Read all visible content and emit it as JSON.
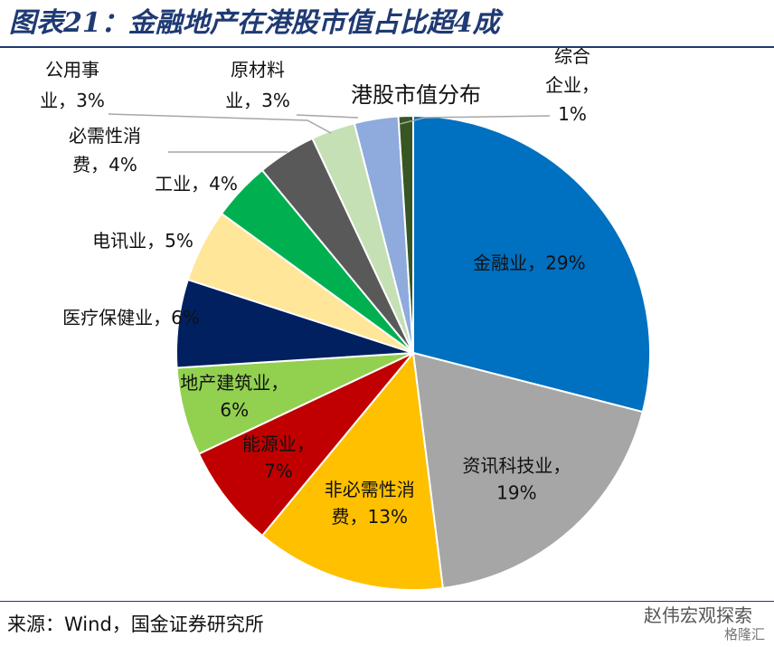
{
  "figure": {
    "title": "图表21：金融地产在港股市值占比超4成",
    "source": "来源：Wind，国金证券研究所",
    "watermark": "赵伟宏观探索",
    "watermark_sub": "格隆汇"
  },
  "chart_data": {
    "type": "pie",
    "title": "港股市值分布",
    "start_angle_deg": 0,
    "direction": "clockwise",
    "slices": [
      {
        "name": "金融业",
        "value": 29,
        "color": "#0070c0",
        "label_lines": [
          "金融业，29%"
        ],
        "label_color": "#111111"
      },
      {
        "name": "资讯科技业",
        "value": 19,
        "color": "#a6a6a6",
        "label_lines": [
          "资讯科技业，",
          "19%"
        ],
        "label_color": "#111111"
      },
      {
        "name": "非必需性消费",
        "value": 13,
        "color": "#ffc000",
        "label_lines": [
          "非必需性消",
          "费，13%"
        ],
        "label_color": "#111111"
      },
      {
        "name": "能源业",
        "value": 7,
        "color": "#c00000",
        "label_lines": [
          "能源业，",
          "7%"
        ],
        "label_color": "#111111"
      },
      {
        "name": "地产建筑业",
        "value": 6,
        "color": "#92d050",
        "label_lines": [
          "地产建筑业，",
          "6%"
        ],
        "label_color": "#111111"
      },
      {
        "name": "医疗保健业",
        "value": 6,
        "color": "#002060",
        "label_lines": [
          "医疗保健业，6%"
        ],
        "label_color": "#111111"
      },
      {
        "name": "电讯业",
        "value": 5,
        "color": "#ffe699",
        "label_lines": [
          "电讯业，5%"
        ],
        "label_color": "#111111"
      },
      {
        "name": "工业",
        "value": 4,
        "color": "#00b050",
        "label_lines": [
          "工业，4%"
        ],
        "label_color": "#111111"
      },
      {
        "name": "必需性消费",
        "value": 4,
        "color": "#595959",
        "label_lines": [
          "必需性消",
          "费，4%"
        ],
        "label_color": "#111111"
      },
      {
        "name": "公用事业",
        "value": 3,
        "color": "#c5e0b4",
        "label_lines": [
          "公用事",
          "业，3%"
        ],
        "label_color": "#111111"
      },
      {
        "name": "原材料业",
        "value": 3,
        "color": "#8faadc",
        "label_lines": [
          "原材料",
          "业，3%"
        ],
        "label_color": "#111111"
      },
      {
        "name": "综合企业",
        "value": 1,
        "color": "#375623",
        "label_lines": [
          "综合",
          "企业，",
          "1%"
        ],
        "label_color": "#111111"
      }
    ]
  }
}
